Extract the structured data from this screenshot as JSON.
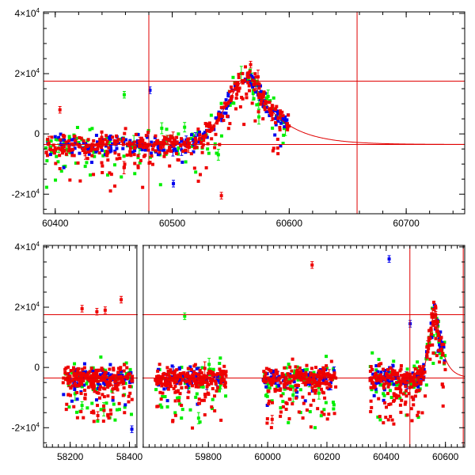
{
  "chart_data": [
    {
      "type": "scatter",
      "panel": "top",
      "title": "",
      "xlabel": "",
      "ylabel": "",
      "xlim": [
        60390,
        60750
      ],
      "ylim": [
        -26500,
        40500
      ],
      "xticks": [
        60400,
        60500,
        60600,
        60700
      ],
      "xtick_labels": [
        "60400",
        "60500",
        "60600",
        "60700"
      ],
      "yticks": [
        -20000,
        0,
        20000,
        40000
      ],
      "ytick_labels": [
        {
          "prefix": "-2×10",
          "exp": "4"
        },
        {
          "prefix": "0",
          "exp": ""
        },
        {
          "prefix": "2×10",
          "exp": "4"
        },
        {
          "prefix": "4×10",
          "exp": "4"
        }
      ],
      "colors": {
        "green": "#00ee00",
        "blue": "#0000ee",
        "red": "#ee0000",
        "line": "#e00000"
      },
      "vlines": [
        60480,
        60658
      ],
      "hlines": [
        17500,
        -3500
      ],
      "model": {
        "baseline": -3500,
        "peak_x": 60567,
        "peak_y": 19000,
        "rise_width": 20,
        "decay_tau": 26
      },
      "series": [
        {
          "name": "",
          "color_key": "green",
          "segments": [
            [
              60392,
              60600
            ]
          ],
          "n": 170,
          "scatter": 2400,
          "outlier_frac": 0.3,
          "outlier_depth": 11000,
          "err_frac": 0.07
        },
        {
          "name": "",
          "color_key": "blue",
          "segments": [
            [
              60392,
              60600
            ]
          ],
          "n": 230,
          "scatter": 1500,
          "outlier_frac": 0.1,
          "outlier_depth": 8000,
          "err_frac": 0.05
        },
        {
          "name": "",
          "color_key": "red",
          "segments": [
            [
              60392,
              60600
            ]
          ],
          "n": 420,
          "scatter": 1800,
          "outlier_frac": 0.22,
          "outlier_depth": 12000,
          "err_frac": 0.04
        }
      ],
      "highlights": [
        {
          "x": 60567,
          "y": 23000,
          "color_key": "red"
        },
        {
          "x": 60542,
          "y": -20500,
          "color_key": "red"
        },
        {
          "x": 60501,
          "y": -16500,
          "color_key": "blue"
        },
        {
          "x": 60481,
          "y": 14500,
          "color_key": "blue"
        },
        {
          "x": 60459,
          "y": 13000,
          "color_key": "green"
        },
        {
          "x": 60404,
          "y": 8000,
          "color_key": "red"
        }
      ]
    },
    {
      "type": "scatter",
      "panel": "bottom",
      "title": "",
      "xlabel": "",
      "ylabel": "",
      "xlim": [
        58110,
        60665
      ],
      "ylim": [
        -26500,
        40500
      ],
      "axis_break": {
        "left_end": 58425,
        "right_start": 59580
      },
      "xticks": [
        58200,
        58300,
        58400,
        59800,
        60000,
        60200,
        60400,
        60600
      ],
      "xtick_labels": [
        "58200",
        "",
        "58400",
        "59800",
        "60000",
        "60200",
        "60400",
        "60600"
      ],
      "yticks": [
        -20000,
        0,
        20000,
        40000
      ],
      "ytick_labels": [
        {
          "prefix": "-2×10",
          "exp": "4"
        },
        {
          "prefix": "0",
          "exp": ""
        },
        {
          "prefix": "2×10",
          "exp": "4"
        },
        {
          "prefix": "4×10",
          "exp": "4"
        }
      ],
      "colors": {
        "green": "#00ee00",
        "blue": "#0000ee",
        "red": "#ee0000",
        "line": "#e00000"
      },
      "vlines": [
        60480,
        60660
      ],
      "hlines": [
        17500,
        -3500
      ],
      "model": {
        "baseline": -3500,
        "peak_x": 60567,
        "peak_y": 19000,
        "rise_width": 20,
        "decay_tau": 26
      },
      "series": [
        {
          "name": "",
          "color_key": "green",
          "segments": [
            [
              58175,
              58410
            ],
            [
              59620,
              59860
            ],
            [
              59985,
              60230
            ],
            [
              60345,
              60600
            ]
          ],
          "n": 320,
          "scatter": 2600,
          "outlier_frac": 0.3,
          "outlier_depth": 13000,
          "err_frac": 0.06
        },
        {
          "name": "",
          "color_key": "blue",
          "segments": [
            [
              58175,
              58410
            ],
            [
              59620,
              59860
            ],
            [
              59985,
              60230
            ],
            [
              60345,
              60600
            ]
          ],
          "n": 320,
          "scatter": 1600,
          "outlier_frac": 0.1,
          "outlier_depth": 9000,
          "err_frac": 0.05
        },
        {
          "name": "",
          "color_key": "red",
          "segments": [
            [
              58175,
              58410
            ],
            [
              59620,
              59860
            ],
            [
              59985,
              60230
            ],
            [
              60345,
              60600
            ]
          ],
          "n": 950,
          "scatter": 2000,
          "outlier_frac": 0.25,
          "outlier_depth": 14000,
          "err_frac": 0.03
        }
      ],
      "highlights": [
        {
          "x": 60150,
          "y": 34000,
          "color_key": "red"
        },
        {
          "x": 60410,
          "y": 36000,
          "color_key": "blue"
        },
        {
          "x": 58240,
          "y": 19500,
          "color_key": "red"
        },
        {
          "x": 58290,
          "y": 18500,
          "color_key": "red"
        },
        {
          "x": 58318,
          "y": 19000,
          "color_key": "red"
        },
        {
          "x": 58372,
          "y": 22500,
          "color_key": "red"
        },
        {
          "x": 59720,
          "y": 17000,
          "color_key": "green"
        },
        {
          "x": 58408,
          "y": -20500,
          "color_key": "blue"
        },
        {
          "x": 60481,
          "y": 14500,
          "color_key": "blue"
        },
        {
          "x": 60567,
          "y": 17500,
          "color_key": "red"
        }
      ]
    }
  ]
}
